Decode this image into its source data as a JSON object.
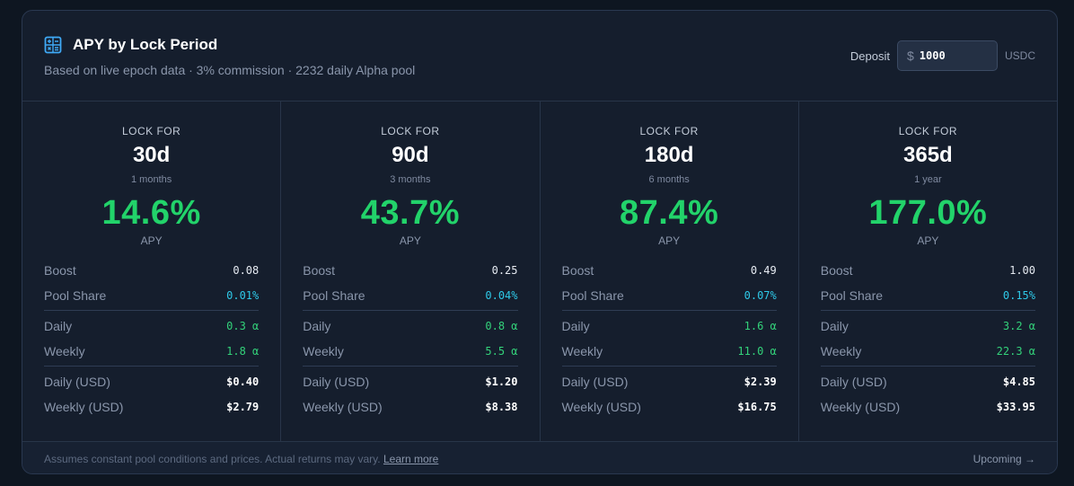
{
  "header": {
    "title": "APY by Lock Period",
    "subtitle": "Based on live epoch data · 3% commission · 2232 daily Alpha pool",
    "icon": "calculator-icon",
    "deposit_label": "Deposit",
    "deposit_currency_symbol": "$",
    "deposit_value": "1000",
    "deposit_unit": "USDC"
  },
  "row_labels": {
    "boost": "Boost",
    "pool_share": "Pool Share",
    "daily": "Daily",
    "weekly": "Weekly",
    "daily_usd": "Daily (USD)",
    "weekly_usd": "Weekly (USD)"
  },
  "columns": [
    {
      "lock_for": "LOCK FOR",
      "period": "30d",
      "duration": "1 months",
      "apy": "14.6%",
      "apy_label": "APY",
      "boost": "0.08",
      "pool_share": "0.01%",
      "daily": "0.3 α",
      "weekly": "1.8 α",
      "daily_usd": "$0.40",
      "weekly_usd": "$2.79"
    },
    {
      "lock_for": "LOCK FOR",
      "period": "90d",
      "duration": "3 months",
      "apy": "43.7%",
      "apy_label": "APY",
      "boost": "0.25",
      "pool_share": "0.04%",
      "daily": "0.8 α",
      "weekly": "5.5 α",
      "daily_usd": "$1.20",
      "weekly_usd": "$8.38"
    },
    {
      "lock_for": "LOCK FOR",
      "period": "180d",
      "duration": "6 months",
      "apy": "87.4%",
      "apy_label": "APY",
      "boost": "0.49",
      "pool_share": "0.07%",
      "daily": "1.6 α",
      "weekly": "11.0 α",
      "daily_usd": "$2.39",
      "weekly_usd": "$16.75"
    },
    {
      "lock_for": "LOCK FOR",
      "period": "365d",
      "duration": "1 year",
      "apy": "177.0%",
      "apy_label": "APY",
      "boost": "1.00",
      "pool_share": "0.15%",
      "daily": "3.2 α",
      "weekly": "22.3 α",
      "daily_usd": "$4.85",
      "weekly_usd": "$33.95"
    }
  ],
  "footer": {
    "disclaimer": "Assumes constant pool conditions and prices. Actual returns may vary.",
    "learn_more": "Learn more",
    "upcoming": "Upcoming →"
  },
  "colors": {
    "accent_green": "#22d36a",
    "accent_cyan": "#2ec9e8",
    "icon_blue": "#3fa9f5"
  }
}
